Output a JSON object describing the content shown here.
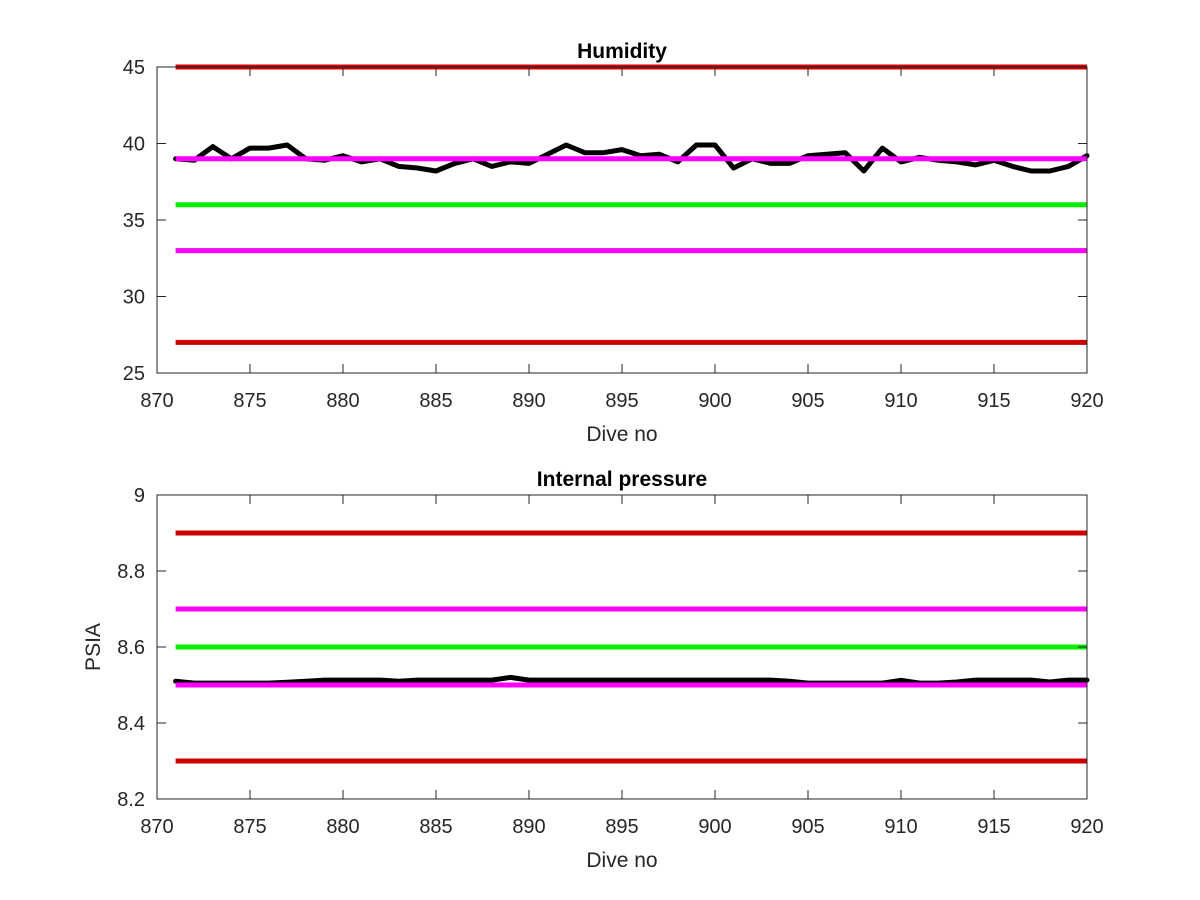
{
  "chart_data": [
    {
      "type": "line",
      "title": "Humidity",
      "xlabel": "Dive no",
      "ylabel": "",
      "xlim": [
        870,
        920
      ],
      "ylim": [
        25,
        45
      ],
      "xticks": [
        "870",
        "875",
        "880",
        "885",
        "890",
        "895",
        "900",
        "905",
        "910",
        "915",
        "920"
      ],
      "yticks": [
        "25",
        "30",
        "35",
        "40",
        "45"
      ],
      "grid": false,
      "reference_lines": [
        {
          "y": 45,
          "color": "#cc0000"
        },
        {
          "y": 39,
          "color": "#ff00ff"
        },
        {
          "y": 36,
          "color": "#00ee00"
        },
        {
          "y": 33,
          "color": "#ff00ff"
        },
        {
          "y": 27,
          "color": "#cc0000"
        }
      ],
      "series": [
        {
          "color": "#000000",
          "x": [
            871,
            872,
            873,
            874,
            875,
            876,
            877,
            878,
            879,
            880,
            881,
            882,
            883,
            884,
            885,
            886,
            887,
            888,
            889,
            890,
            891,
            892,
            893,
            894,
            895,
            896,
            897,
            898,
            899,
            900,
            901,
            902,
            903,
            904,
            905,
            906,
            907,
            908,
            909,
            910,
            911,
            912,
            913,
            914,
            915,
            916,
            917,
            918,
            919,
            920
          ],
          "y": [
            39.0,
            38.9,
            39.8,
            39.0,
            39.7,
            39.7,
            39.9,
            39.0,
            38.9,
            39.2,
            38.8,
            39.0,
            38.5,
            38.4,
            38.2,
            38.7,
            39.0,
            38.5,
            38.8,
            38.7,
            39.3,
            39.9,
            39.4,
            39.4,
            39.6,
            39.2,
            39.3,
            38.8,
            39.9,
            39.9,
            38.4,
            39.0,
            38.7,
            38.7,
            39.2,
            39.3,
            39.4,
            38.2,
            39.7,
            38.8,
            39.1,
            38.9,
            38.8,
            38.6,
            38.9,
            38.5,
            38.2,
            38.2,
            38.5,
            39.2
          ]
        }
      ]
    },
    {
      "type": "line",
      "title": "Internal pressure",
      "xlabel": "Dive no",
      "ylabel": "PSIA",
      "xlim": [
        870,
        920
      ],
      "ylim": [
        8.2,
        9
      ],
      "xticks": [
        "870",
        "875",
        "880",
        "885",
        "890",
        "895",
        "900",
        "905",
        "910",
        "915",
        "920"
      ],
      "yticks": [
        "8.2",
        "8.4",
        "8.6",
        "8.8",
        "9"
      ],
      "grid": false,
      "reference_lines": [
        {
          "y": 8.9,
          "color": "#cc0000"
        },
        {
          "y": 8.7,
          "color": "#ff00ff"
        },
        {
          "y": 8.6,
          "color": "#00ee00"
        },
        {
          "y": 8.5,
          "color": "#ff00ff"
        },
        {
          "y": 8.3,
          "color": "#cc0000"
        }
      ],
      "series": [
        {
          "color": "#000000",
          "x": [
            871,
            872,
            873,
            874,
            875,
            876,
            877,
            878,
            879,
            880,
            881,
            882,
            883,
            884,
            885,
            886,
            887,
            888,
            889,
            890,
            891,
            892,
            893,
            894,
            895,
            896,
            897,
            898,
            899,
            900,
            901,
            902,
            903,
            904,
            905,
            906,
            907,
            908,
            909,
            910,
            911,
            912,
            913,
            914,
            915,
            916,
            917,
            918,
            919,
            920
          ],
          "y": [
            8.51,
            8.505,
            8.505,
            8.505,
            8.505,
            8.505,
            8.507,
            8.51,
            8.513,
            8.513,
            8.513,
            8.513,
            8.51,
            8.513,
            8.513,
            8.513,
            8.513,
            8.513,
            8.52,
            8.513,
            8.513,
            8.513,
            8.513,
            8.513,
            8.513,
            8.513,
            8.513,
            8.513,
            8.513,
            8.513,
            8.513,
            8.513,
            8.513,
            8.51,
            8.505,
            8.505,
            8.505,
            8.505,
            8.505,
            8.512,
            8.505,
            8.505,
            8.508,
            8.513,
            8.513,
            8.513,
            8.513,
            8.508,
            8.513,
            8.513
          ]
        }
      ]
    }
  ]
}
